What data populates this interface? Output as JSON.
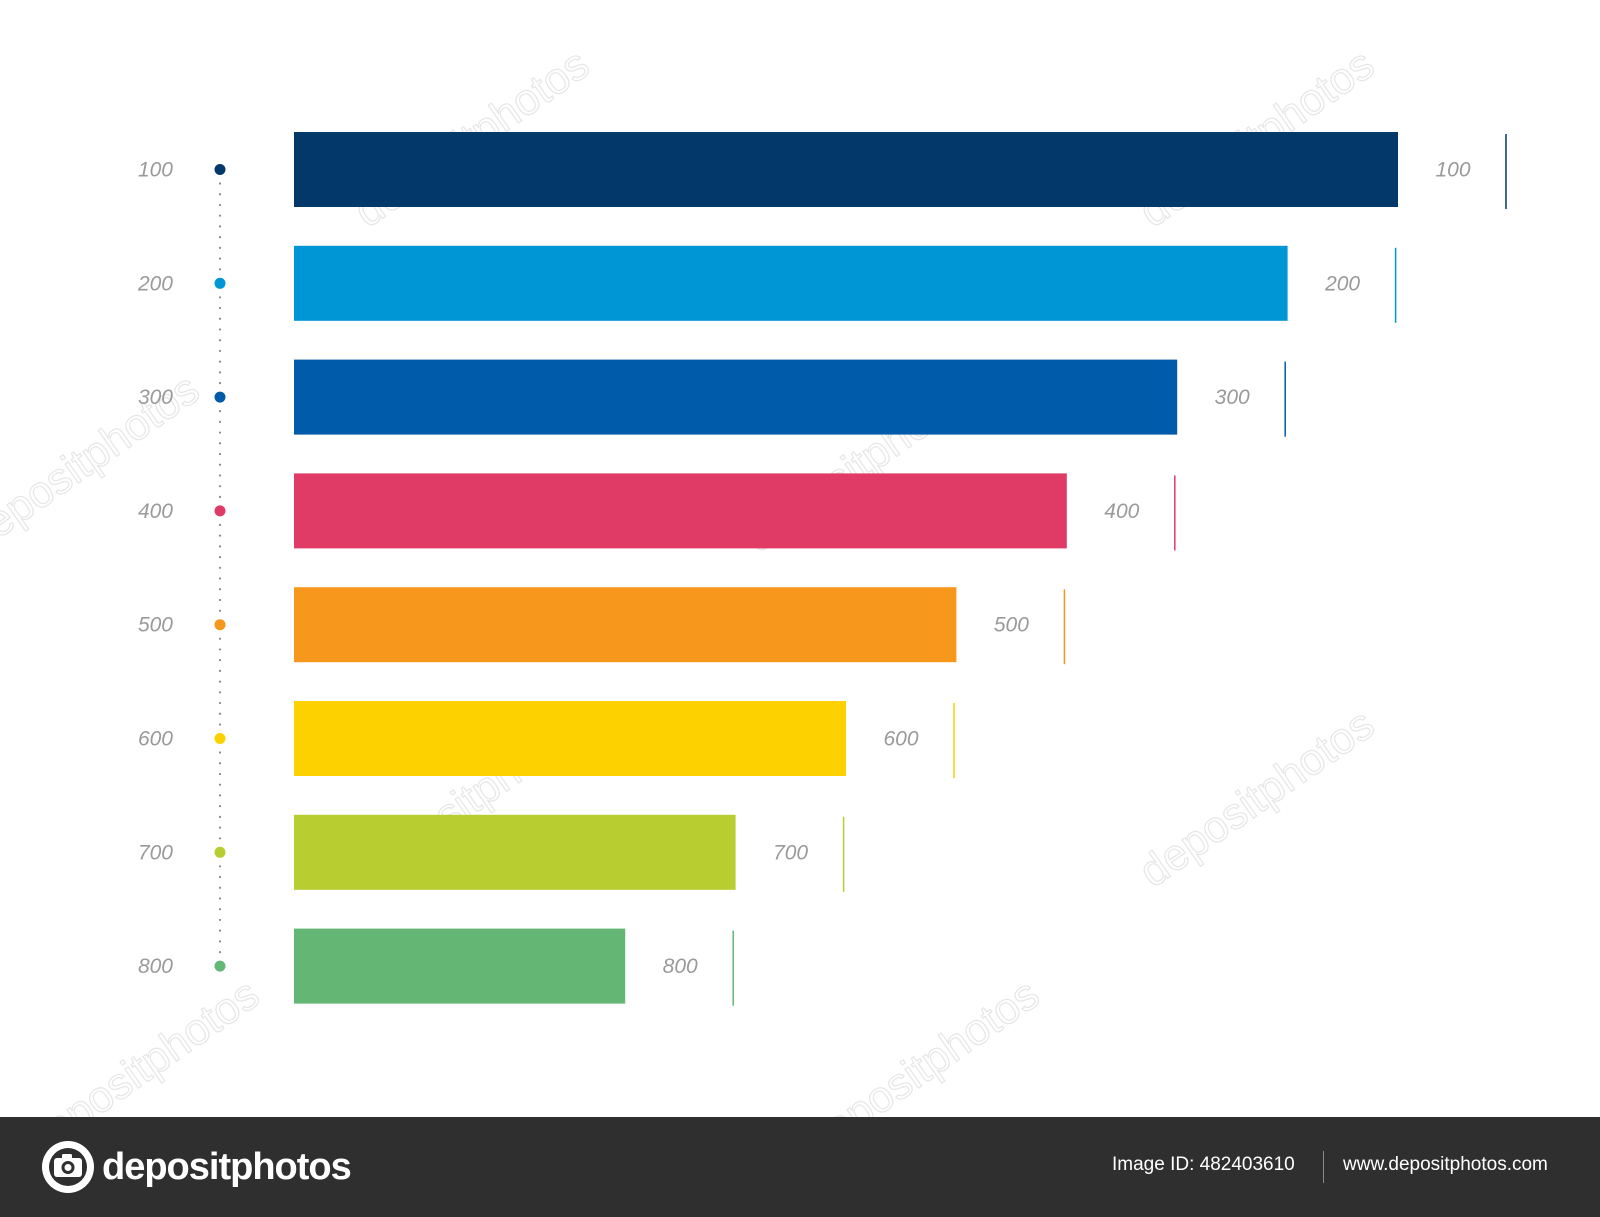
{
  "chart_data": {
    "type": "bar",
    "orientation": "horizontal",
    "categories": [
      "100",
      "200",
      "300",
      "400",
      "500",
      "600",
      "700",
      "800"
    ],
    "values": [
      100,
      90,
      80,
      70,
      60,
      50,
      40,
      30
    ],
    "value_labels": [
      "100",
      "200",
      "300",
      "400",
      "500",
      "600",
      "700",
      "800"
    ],
    "colors": [
      "#02386a",
      "#0096d6",
      "#005baa",
      "#e03a66",
      "#f7981d",
      "#fdd000",
      "#b8cd2f",
      "#63b673"
    ],
    "title": "",
    "xlabel": "",
    "ylabel": "",
    "xlim": [
      0,
      100
    ],
    "grid": false,
    "legend": "none"
  },
  "watermark": {
    "text": "depositphotos"
  },
  "footer": {
    "logo_text": "depositphotos",
    "image_id": "Image ID: 482403610",
    "url": "www.depositphotos.com"
  }
}
